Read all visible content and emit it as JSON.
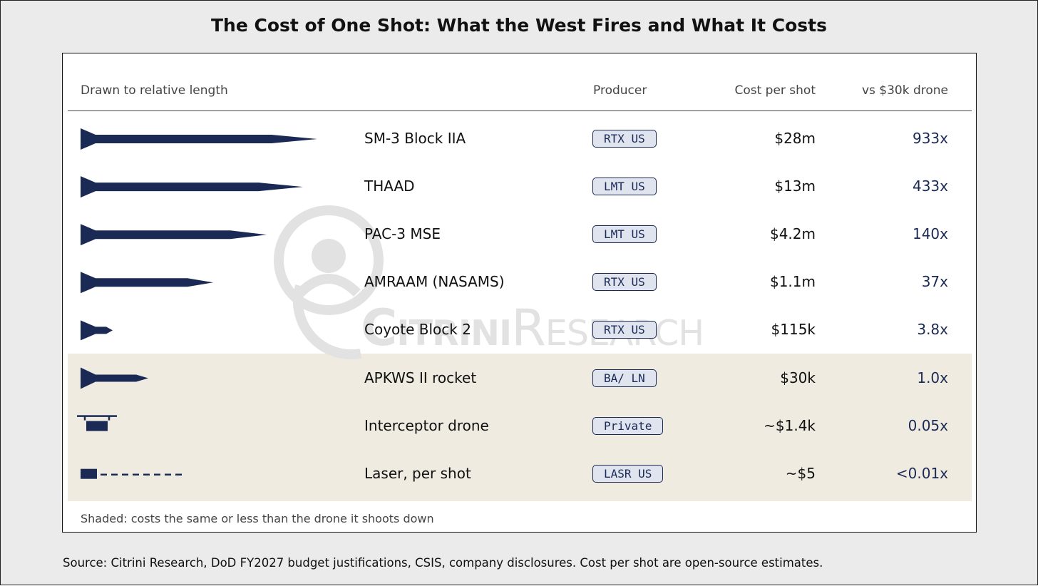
{
  "title": "The Cost of One Shot: What the West Fires and What It Costs",
  "table": {
    "header": [
      "Drawn to relative length",
      "Producer",
      "Cost per shot",
      "vs $30k drone"
    ],
    "rows": [
      [
        "SM-3 Block IIA",
        "RTX US",
        "$28m",
        "933x"
      ],
      [
        "THAAD",
        "LMT US",
        "$13m",
        "433x"
      ],
      [
        "PAC-3 MSE",
        "LMT US",
        "$4.2m",
        "140x"
      ],
      [
        "AMRAAM (NASAMS)",
        "RTX US",
        "$1.1m",
        "37x"
      ],
      [
        "Coyote Block 2",
        "RTX US",
        "$115k",
        "3.8x"
      ],
      [
        "APKWS II rocket",
        "BA/ LN",
        "$30k",
        "1.0x"
      ],
      [
        "Interceptor drone",
        "Private",
        "~$1.4k",
        "0.05x"
      ],
      [
        "Laser, per shot",
        "LASR US",
        "~$5",
        "<0.01x"
      ]
    ]
  },
  "footnote": "Shaded: costs the same or less than the drone it shoots down",
  "source": "Source: Citrini Research, DoD FY2027 budget justifications, CSIS, company disclosures. Cost per shot are open-source estimates.",
  "watermark": [
    "Citrini",
    "Research"
  ]
}
